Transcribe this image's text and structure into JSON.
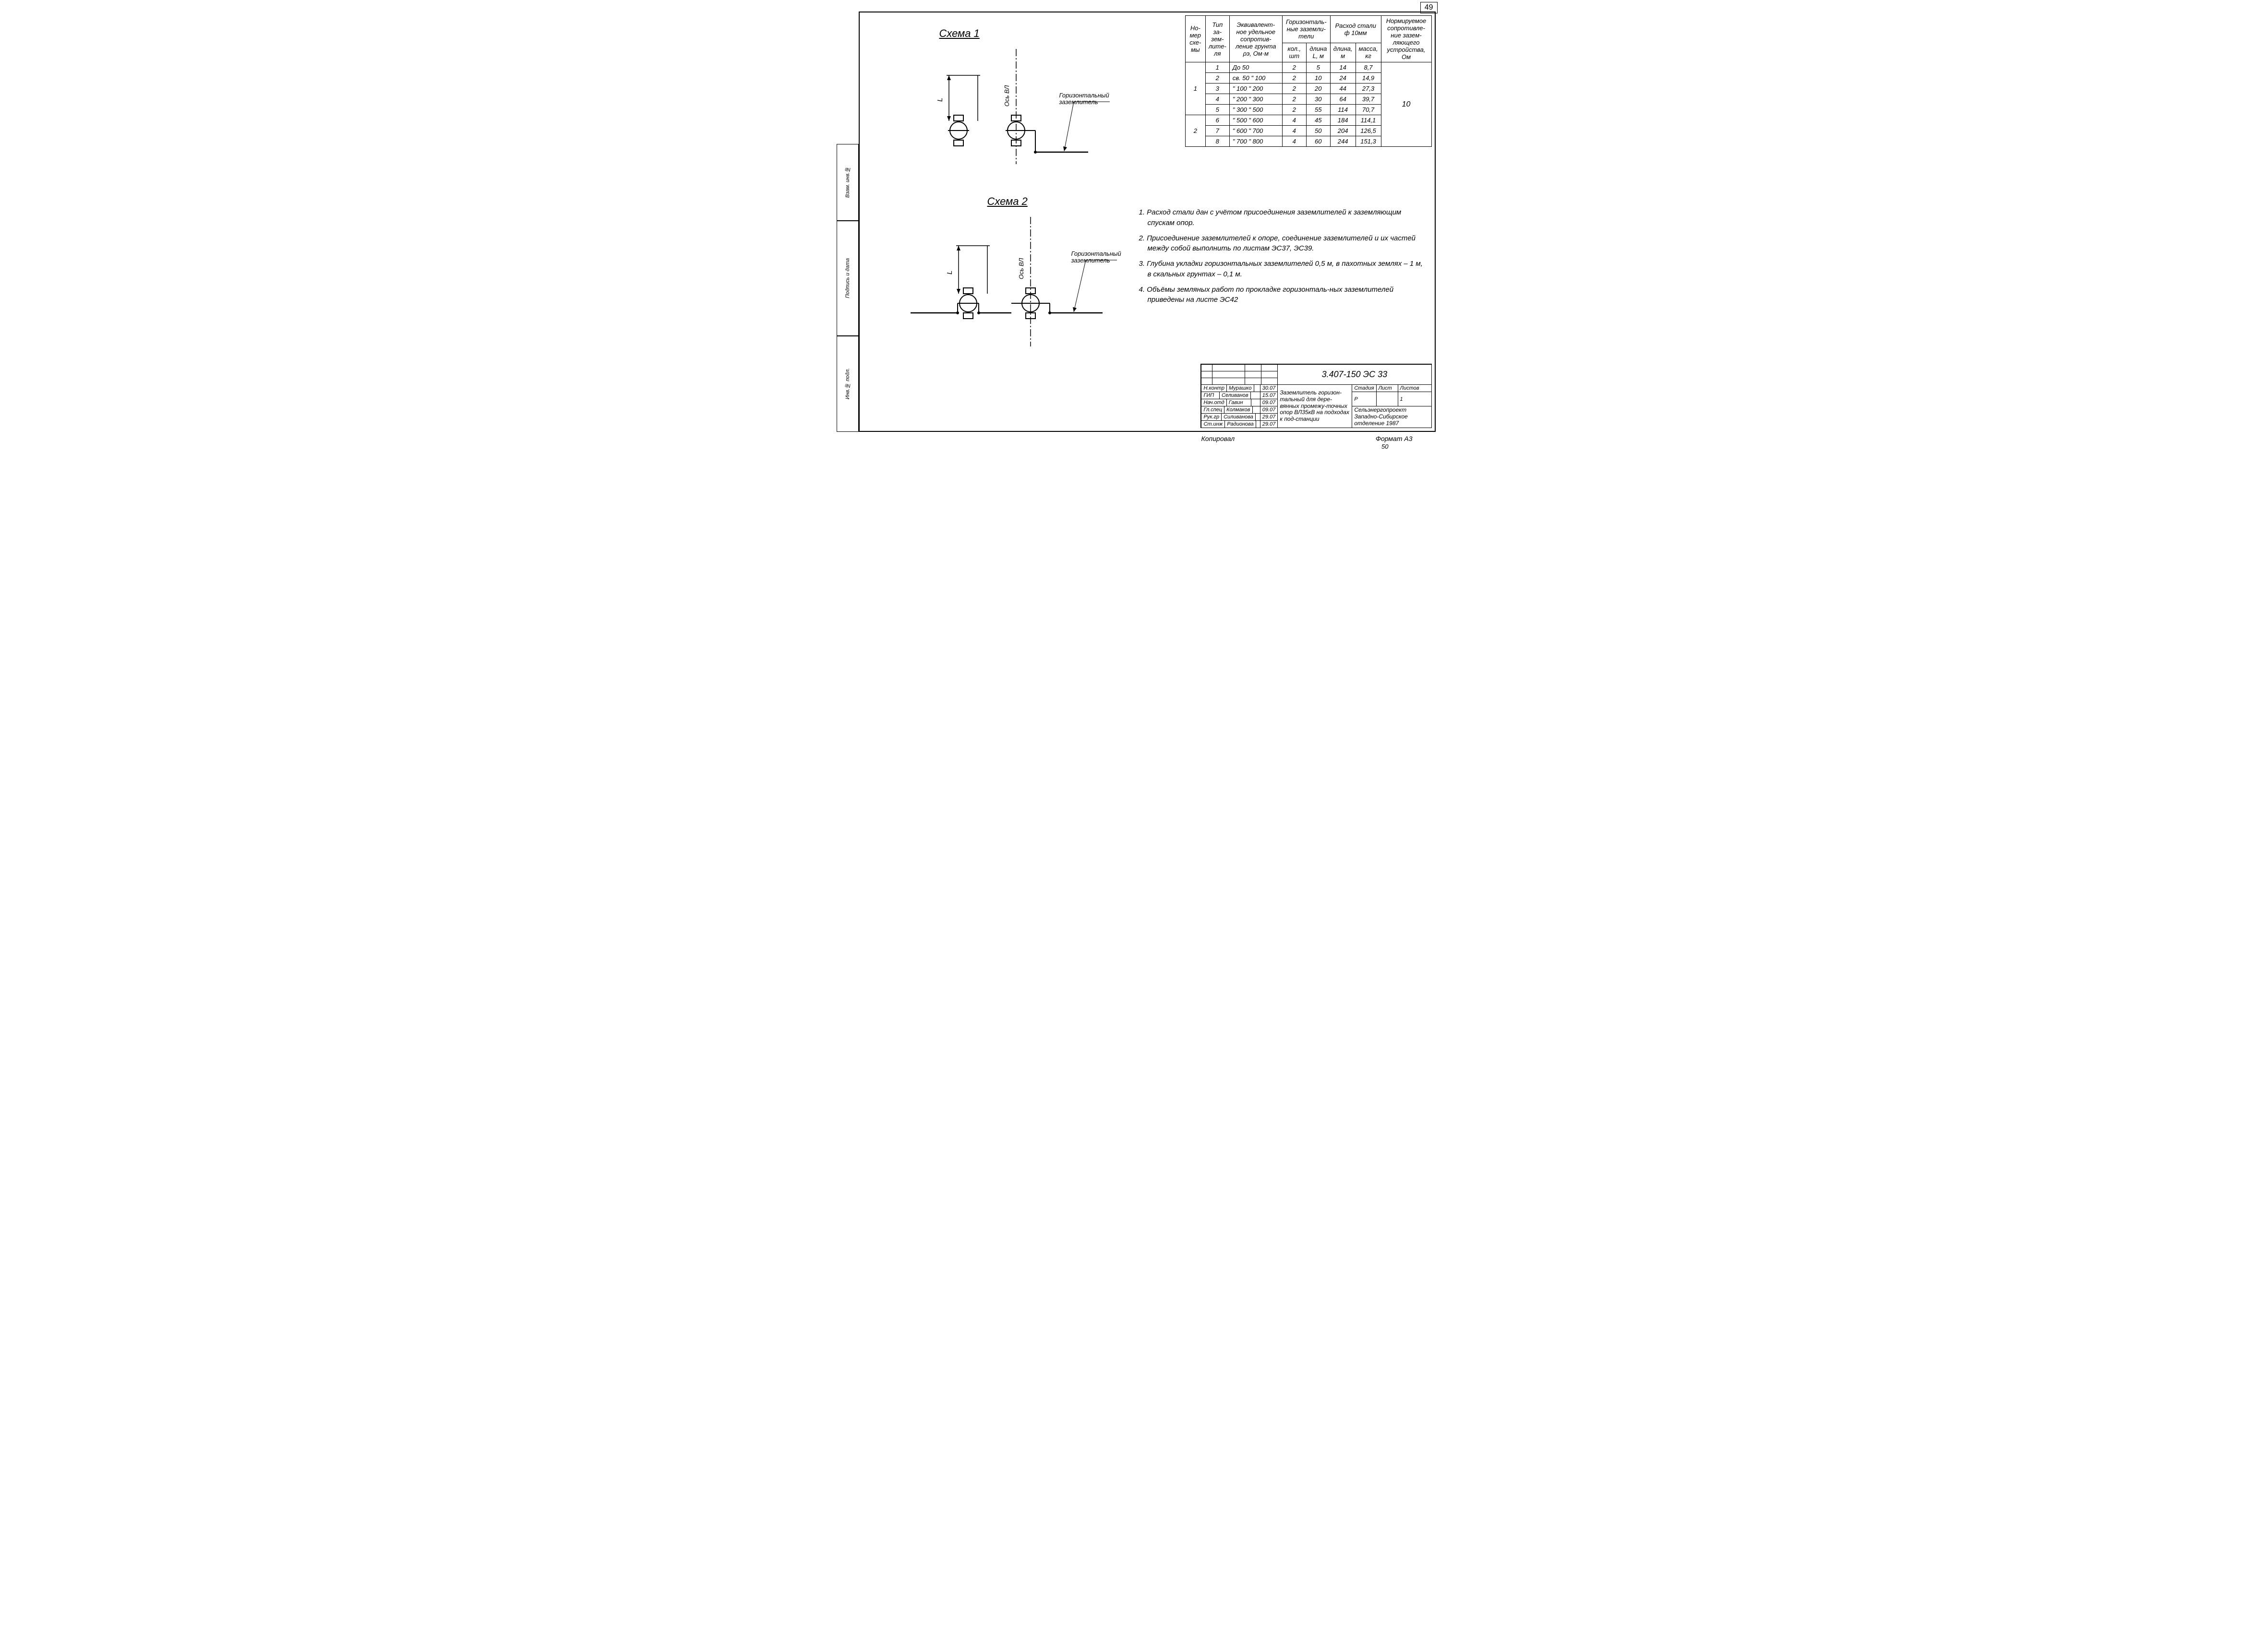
{
  "page_number": "49",
  "schema1_title": "Схема 1",
  "schema2_title": "Схема 2",
  "diagram_label": "Горизонтальный заземлитель",
  "axis_label": "Ось ВЛ",
  "dim_label": "L",
  "table": {
    "headers": {
      "col1": "Но-мер схе-мы",
      "col2": "Тип за-зем-лите-ля",
      "col3": "Эквивалент-ное удельное сопротив-ление грунта ρэ, Ом·м",
      "col4": "Горизонталь-ные заземли-тели",
      "col4a": "кол., шт",
      "col4b": "длина L, м",
      "col5": "Расход стали ф 10мм",
      "col5a": "длина, м",
      "col5b": "масса, кг",
      "col6": "Нормируемое сопротивле-ние зазем-ляющего устройства, Ом"
    },
    "rows": [
      {
        "scheme": "1",
        "type": "1",
        "res": "До 50",
        "qty": "2",
        "len": "5",
        "steel_l": "14",
        "steel_m": "8,7"
      },
      {
        "scheme": "",
        "type": "2",
        "res": "св. 50  \"  100",
        "qty": "2",
        "len": "10",
        "steel_l": "24",
        "steel_m": "14,9"
      },
      {
        "scheme": "",
        "type": "3",
        "res": "\" 100  \"  200",
        "qty": "2",
        "len": "20",
        "steel_l": "44",
        "steel_m": "27,3"
      },
      {
        "scheme": "",
        "type": "4",
        "res": "\" 200  \"  300",
        "qty": "2",
        "len": "30",
        "steel_l": "64",
        "steel_m": "39,7"
      },
      {
        "scheme": "",
        "type": "5",
        "res": "\" 300  \"  500",
        "qty": "2",
        "len": "55",
        "steel_l": "114",
        "steel_m": "70,7"
      },
      {
        "scheme": "2",
        "type": "6",
        "res": "\" 500  \"  600",
        "qty": "4",
        "len": "45",
        "steel_l": "184",
        "steel_m": "114,1"
      },
      {
        "scheme": "",
        "type": "7",
        "res": "\" 600  \"  700",
        "qty": "4",
        "len": "50",
        "steel_l": "204",
        "steel_m": "126,5"
      },
      {
        "scheme": "",
        "type": "8",
        "res": "\" 700  \"  800",
        "qty": "4",
        "len": "60",
        "steel_l": "244",
        "steel_m": "151,3"
      }
    ],
    "norm_value": "10"
  },
  "notes": [
    "1. Расход стали дан с учётом присоединения заземлителей к заземляющим спускам опор.",
    "2. Присоединение заземлителей к опоре, соединение заземлителей и их частей между собой выполнить по листам ЭС37, ЭС39.",
    "3. Глубина укладки горизонтальных заземлителей 0,5 м, в пахотных землях – 1 м, в скальных грунтах – 0,1 м.",
    "4. Объёмы земляных работ по прокладке горизонталь-ных заземлителей приведены на листе ЭС42"
  ],
  "title_block": {
    "code": "3.407-150 ЭС 33",
    "description": "Заземлитель горизон-тальный для дере-вянных промежу-точных опор ВЛ35кВ на подходах к под-станции",
    "stage_h": "Стадия",
    "sheet_h": "Лист",
    "sheets_h": "Листов",
    "stage": "Р",
    "sheet": "",
    "sheets": "1",
    "org": "Сельэнергопроект Западно-Сибирское отделение   1987",
    "roles": [
      {
        "role": "Н.контр",
        "name": "Мурашко",
        "sign": "",
        "date": "30.07"
      },
      {
        "role": "ГИП",
        "name": "Селиванов",
        "sign": "",
        "date": "15.07"
      },
      {
        "role": "Нач.отд",
        "name": "Гавин",
        "sign": "",
        "date": "09.07"
      },
      {
        "role": "Гл.спец",
        "name": "Колмаков",
        "sign": "",
        "date": "09.07"
      },
      {
        "role": "Рук.гр",
        "name": "Силиванова",
        "sign": "",
        "date": "29.07"
      },
      {
        "role": "Ст.инж",
        "name": "Радионова",
        "sign": "",
        "date": "29.07"
      }
    ]
  },
  "binding": {
    "cell1": "Инв.№ подл.",
    "cell2": "Подпись и дата",
    "cell3": "Взам. инв.№"
  },
  "footer": {
    "copied": "Копировал",
    "format": "Формат А3",
    "bottom_num": "50"
  }
}
